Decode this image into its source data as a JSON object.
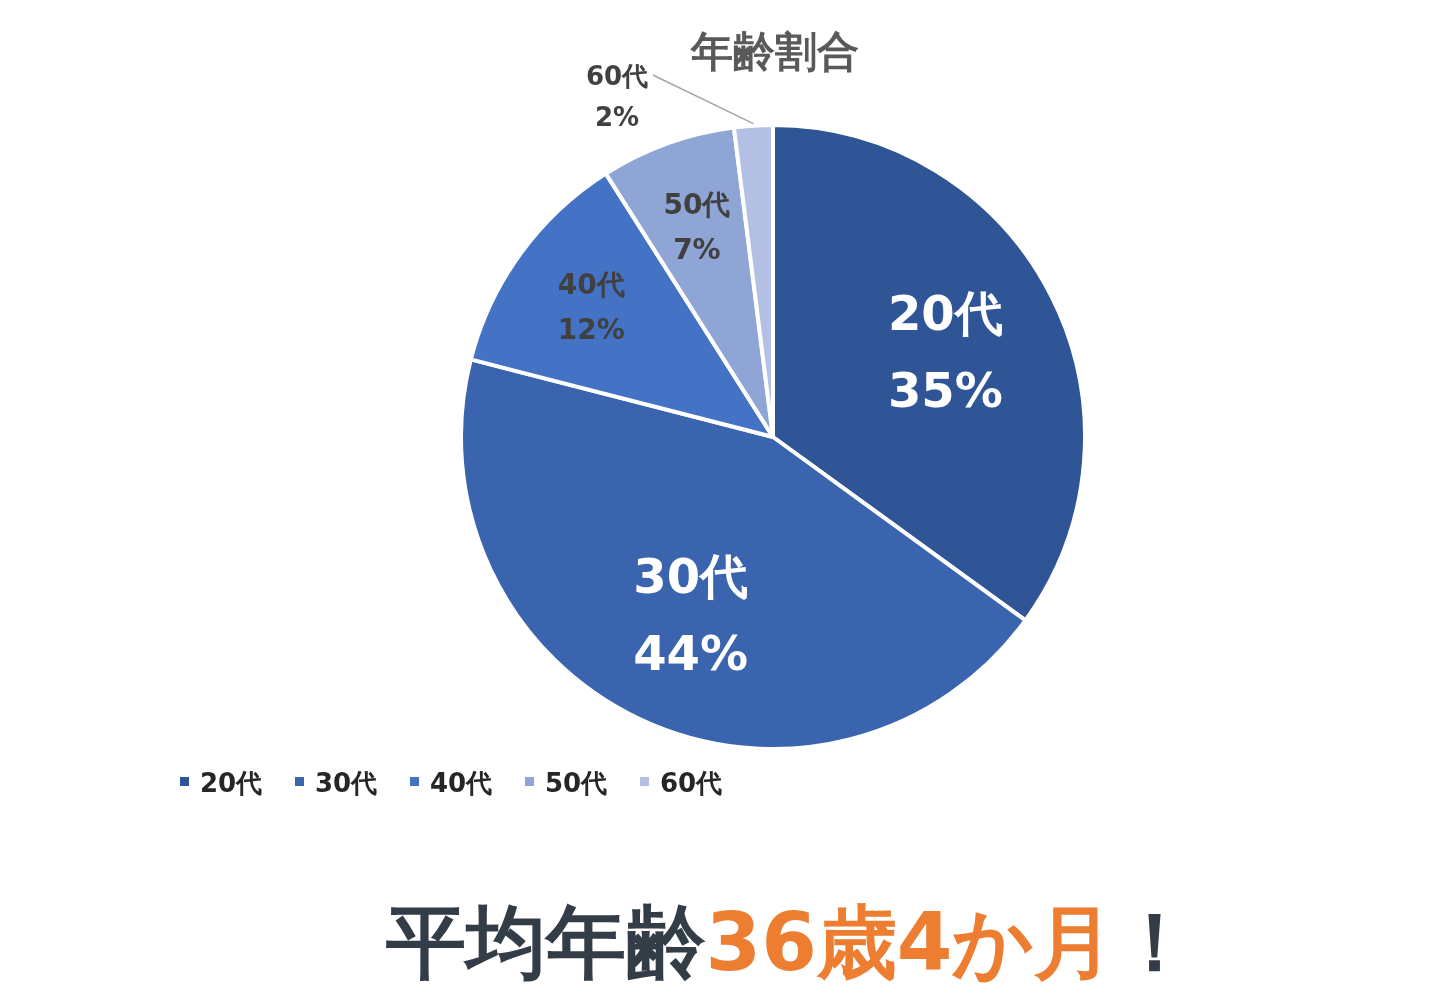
{
  "chart_data": {
    "type": "pie",
    "title": "年齢割合",
    "categories": [
      "20代",
      "30代",
      "40代",
      "50代",
      "60代"
    ],
    "values": [
      35,
      44,
      12,
      7,
      2
    ],
    "value_labels": [
      "35%",
      "44%",
      "12%",
      "7%",
      "2%"
    ],
    "colors": [
      "#2f5597",
      "#3a64ad",
      "#4472c4",
      "#8fa5d6",
      "#b4c0e3"
    ],
    "legend": "bottom left",
    "annotations": [
      "平均年齢",
      "36歳4か月",
      "！"
    ]
  }
}
